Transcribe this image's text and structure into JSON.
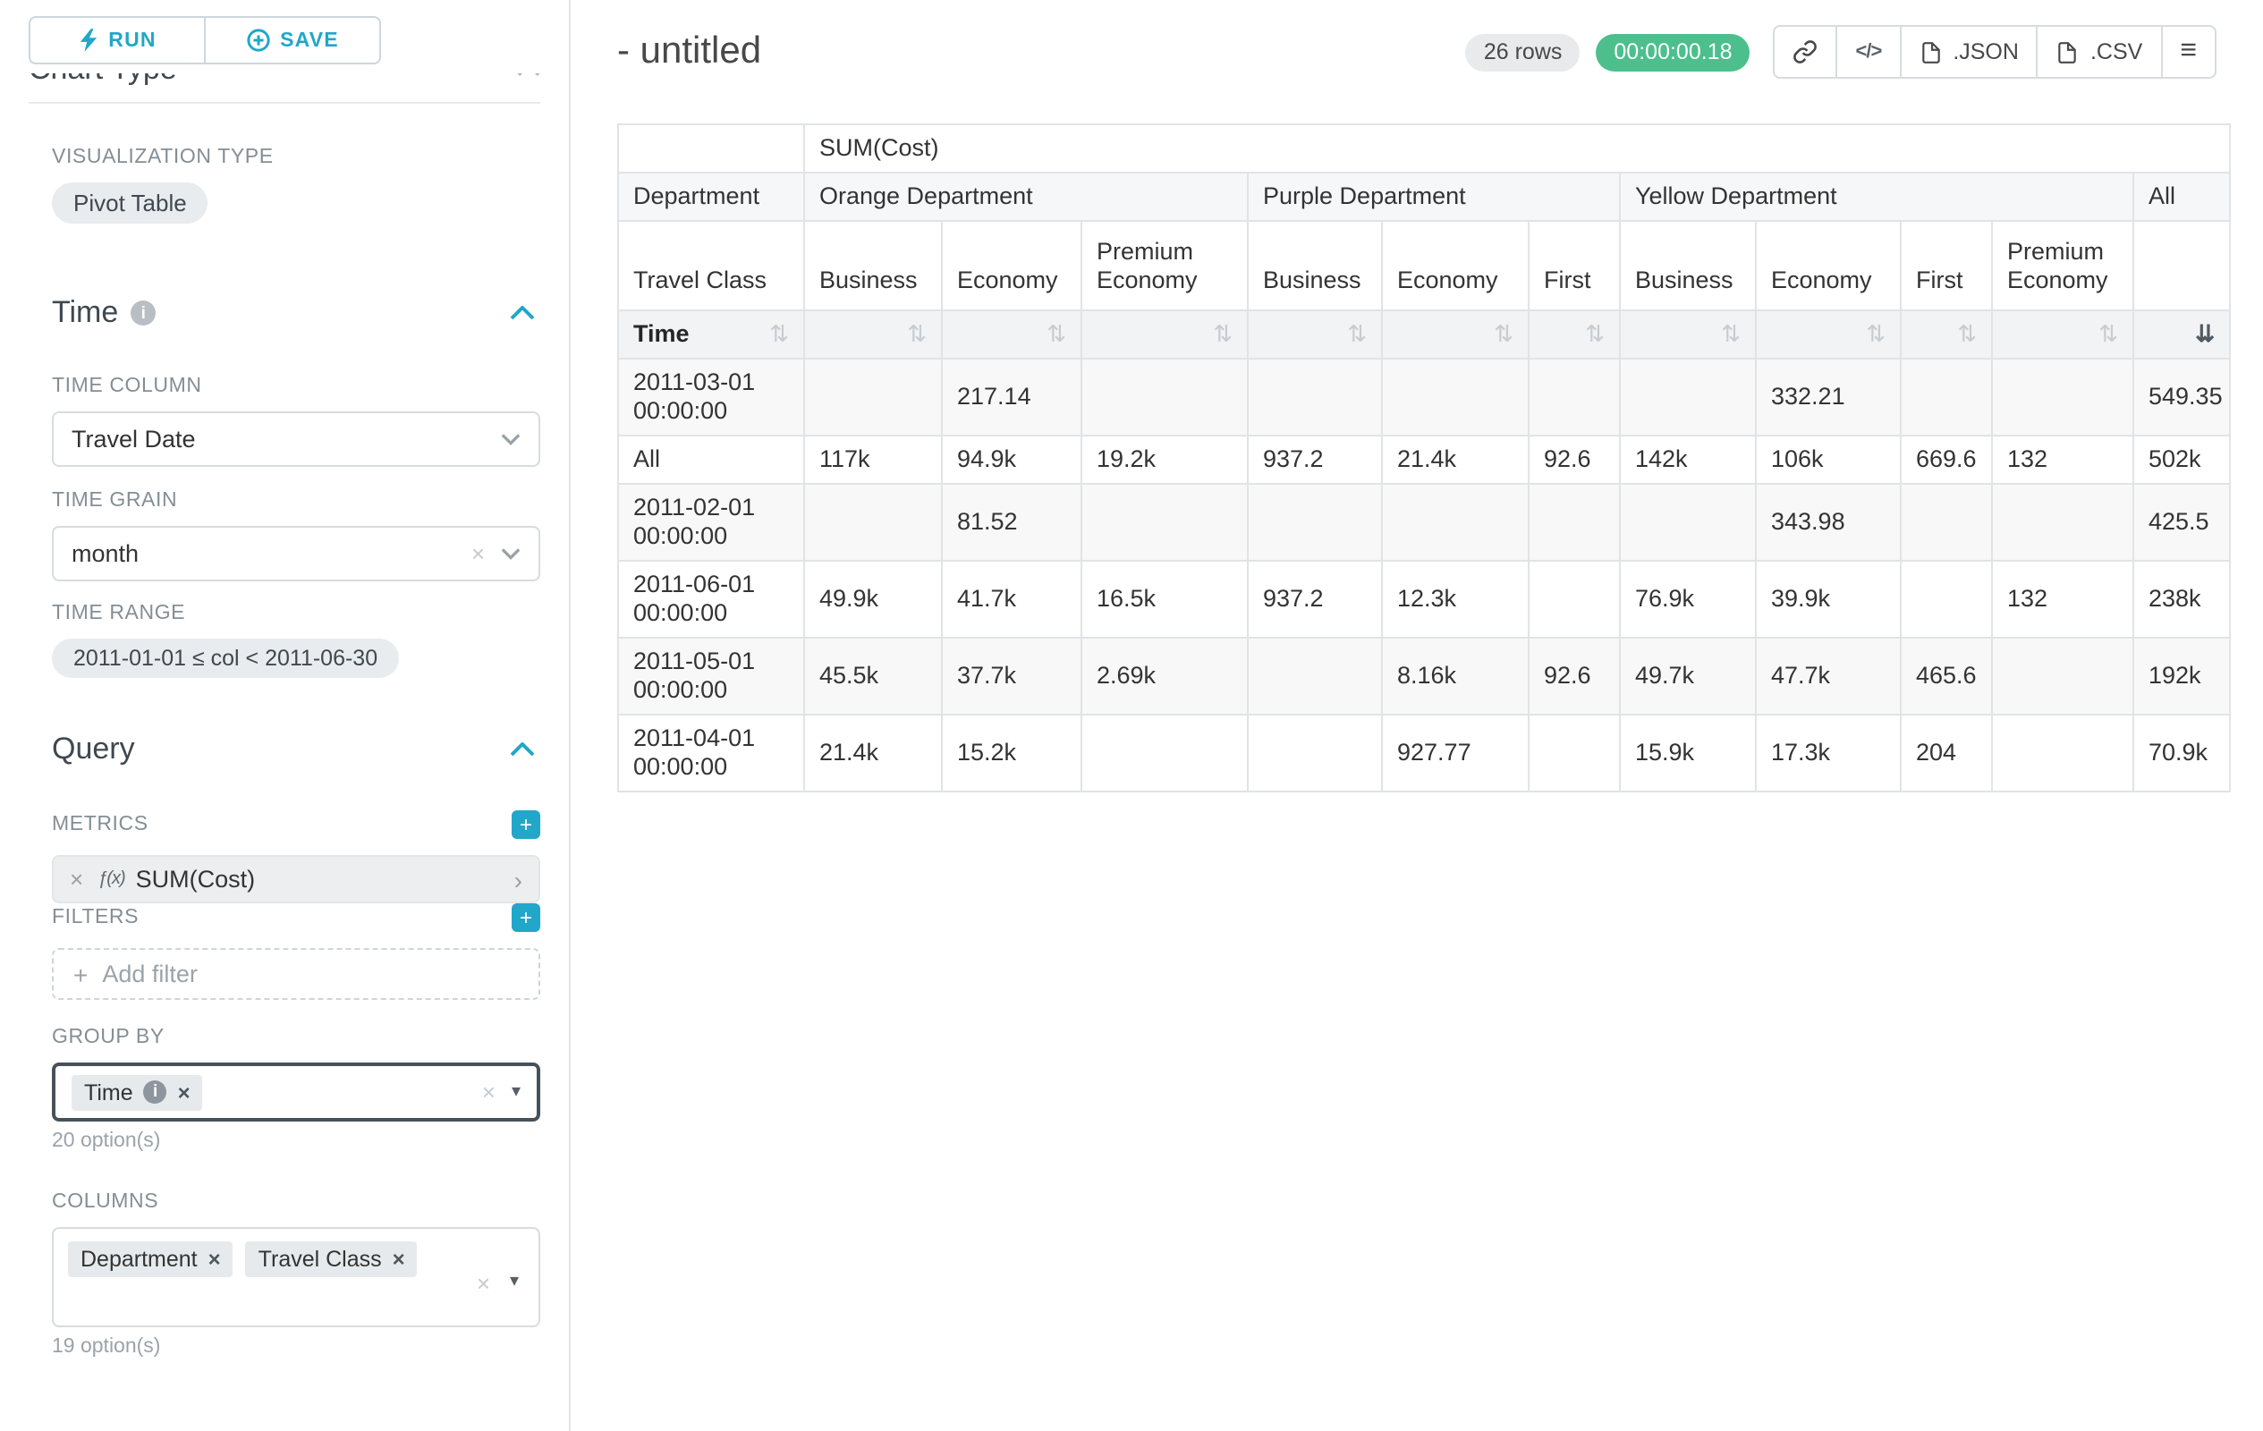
{
  "icons": {
    "sort": "⇅",
    "sort_desc": "⇊",
    "close": "×",
    "plus": "+",
    "caret": "▾",
    "chevron_right": "›",
    "code": "</>",
    "menu": "≡",
    "info": "i",
    "fx": "ƒ(x)"
  },
  "sidebar": {
    "run_label": "RUN",
    "save_label": "SAVE",
    "chart_type_heading": "Chart Type",
    "viz_label": "VISUALIZATION TYPE",
    "viz_value": "Pivot Table",
    "time_title": "Time",
    "time_column_label": "TIME COLUMN",
    "time_column_value": "Travel Date",
    "time_grain_label": "TIME GRAIN",
    "time_grain_value": "month",
    "time_range_label": "TIME RANGE",
    "time_range_value": "2011-01-01 ≤ col < 2011-06-30",
    "query_title": "Query",
    "metrics_label": "METRICS",
    "metric_name": "SUM(Cost)",
    "filters_label": "FILTERS",
    "add_filter_label": "Add filter",
    "group_by_label": "GROUP BY",
    "group_by_chip": "Time",
    "group_by_hint": "20 option(s)",
    "columns_label": "COLUMNS",
    "columns_chips": [
      "Department",
      "Travel Class"
    ],
    "columns_hint": "19 option(s)"
  },
  "header": {
    "title": "- untitled",
    "rows_badge": "26 rows",
    "timer": "00:00:00.18",
    "json_label": ".JSON",
    "csv_label": ".CSV"
  },
  "pivot": {
    "metric_header": "SUM(Cost)",
    "dept_header": "Department",
    "class_header": "Travel Class",
    "time_header": "Time",
    "all_header": "All",
    "groups": [
      {
        "name": "Orange Department",
        "cols": [
          "Business",
          "Economy",
          "Premium Economy"
        ]
      },
      {
        "name": "Purple Department",
        "cols": [
          "Business",
          "Economy",
          "First"
        ]
      },
      {
        "name": "Yellow Department",
        "cols": [
          "Business",
          "Economy",
          "First",
          "Premium Economy"
        ]
      }
    ],
    "rows": [
      {
        "time": "2011-03-01 00:00:00",
        "values": [
          "",
          "217.14",
          "",
          "",
          "",
          "",
          "",
          "332.21",
          "",
          "",
          "549.35"
        ]
      },
      {
        "time": "All",
        "values": [
          "117k",
          "94.9k",
          "19.2k",
          "937.2",
          "21.4k",
          "92.6",
          "142k",
          "106k",
          "669.6",
          "132",
          "502k"
        ]
      },
      {
        "time": "2011-02-01 00:00:00",
        "values": [
          "",
          "81.52",
          "",
          "",
          "",
          "",
          "",
          "343.98",
          "",
          "",
          "425.5"
        ]
      },
      {
        "time": "2011-06-01 00:00:00",
        "values": [
          "49.9k",
          "41.7k",
          "16.5k",
          "937.2",
          "12.3k",
          "",
          "76.9k",
          "39.9k",
          "",
          "132",
          "238k"
        ]
      },
      {
        "time": "2011-05-01 00:00:00",
        "values": [
          "45.5k",
          "37.7k",
          "2.69k",
          "",
          "8.16k",
          "92.6",
          "49.7k",
          "47.7k",
          "465.6",
          "",
          "192k"
        ]
      },
      {
        "time": "2011-04-01 00:00:00",
        "values": [
          "21.4k",
          "15.2k",
          "",
          "",
          "927.77",
          "",
          "15.9k",
          "17.3k",
          "204",
          "",
          "70.9k"
        ]
      }
    ]
  }
}
